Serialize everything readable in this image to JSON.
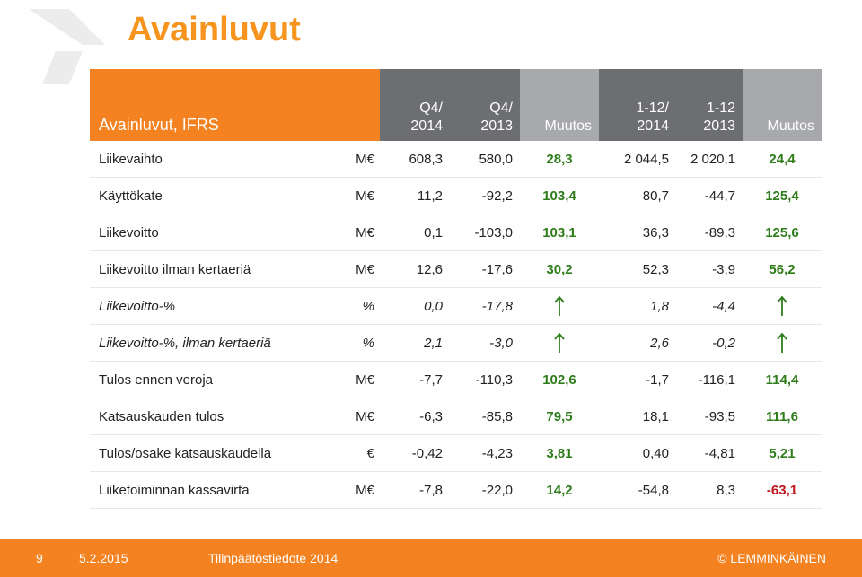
{
  "title": "Avainluvut",
  "table": {
    "header": {
      "label": "Avainluvut, IFRS",
      "columns": [
        "Q4/\n2014",
        "Q4/\n2013",
        "Muutos",
        "1-12/\n2014",
        "1-12\n2013",
        "Muutos"
      ]
    },
    "rows": [
      {
        "label": "Liikevaihto",
        "unit": "M€",
        "q4_2014": "608,3",
        "q4_2013": "580,0",
        "change_q": "28,3",
        "y_2014": "2 044,5",
        "y_2013": "2 020,1",
        "change_y": "24,4"
      },
      {
        "label": "Käyttökate",
        "unit": "M€",
        "q4_2014": "11,2",
        "q4_2013": "-92,2",
        "change_q": "103,4",
        "y_2014": "80,7",
        "y_2013": "-44,7",
        "change_y": "125,4"
      },
      {
        "label": "Liikevoitto",
        "unit": "M€",
        "q4_2014": "0,1",
        "q4_2013": "-103,0",
        "change_q": "103,1",
        "y_2014": "36,3",
        "y_2013": "-89,3",
        "change_y": "125,6"
      },
      {
        "label": "Liikevoitto ilman kertaeriä",
        "unit": "M€",
        "q4_2014": "12,6",
        "q4_2013": "-17,6",
        "change_q": "30,2",
        "y_2014": "52,3",
        "y_2013": "-3,9",
        "change_y": "56,2"
      },
      {
        "label": "Liikevoitto-%",
        "unit": "%",
        "q4_2014": "0,0",
        "q4_2013": "-17,8",
        "change_q": "up-arrow",
        "y_2014": "1,8",
        "y_2013": "-4,4",
        "change_y": "up-arrow"
      },
      {
        "label": "Liikevoitto-%, ilman kertaeriä",
        "unit": "%",
        "q4_2014": "2,1",
        "q4_2013": "-3,0",
        "change_q": "up-arrow",
        "y_2014": "2,6",
        "y_2013": "-0,2",
        "change_y": "up-arrow"
      },
      {
        "label": "Tulos ennen veroja",
        "unit": "M€",
        "q4_2014": "-7,7",
        "q4_2013": "-110,3",
        "change_q": "102,6",
        "y_2014": "-1,7",
        "y_2013": "-116,1",
        "change_y": "114,4"
      },
      {
        "label": "Katsauskauden tulos",
        "unit": "M€",
        "q4_2014": "-6,3",
        "q4_2013": "-85,8",
        "change_q": "79,5",
        "y_2014": "18,1",
        "y_2013": "-93,5",
        "change_y": "111,6"
      },
      {
        "label": "Tulos/osake katsauskaudella",
        "unit": "€",
        "q4_2014": "-0,42",
        "q4_2013": "-4,23",
        "change_q": "3,81",
        "y_2014": "0,40",
        "y_2013": "-4,81",
        "change_y": "5,21"
      },
      {
        "label": "Liiketoiminnan kassavirta",
        "unit": "M€",
        "q4_2014": "-7,8",
        "q4_2013": "-22,0",
        "change_q": "14,2",
        "y_2014": "-54,8",
        "y_2013": "8,3",
        "change_y": "-63,1"
      }
    ]
  },
  "footer": {
    "page": "9",
    "date": "5.2.2015",
    "doc": "Tilinpäätöstiedote 2014",
    "brand": "© LEMMINKÄINEN"
  },
  "colors": {
    "accent": "#f58220",
    "title": "#f7941d",
    "header_dark": "#6d6e71",
    "header_mid": "#a7a9ac",
    "positive": "#2e7d1a",
    "negative": "#c0161c"
  }
}
